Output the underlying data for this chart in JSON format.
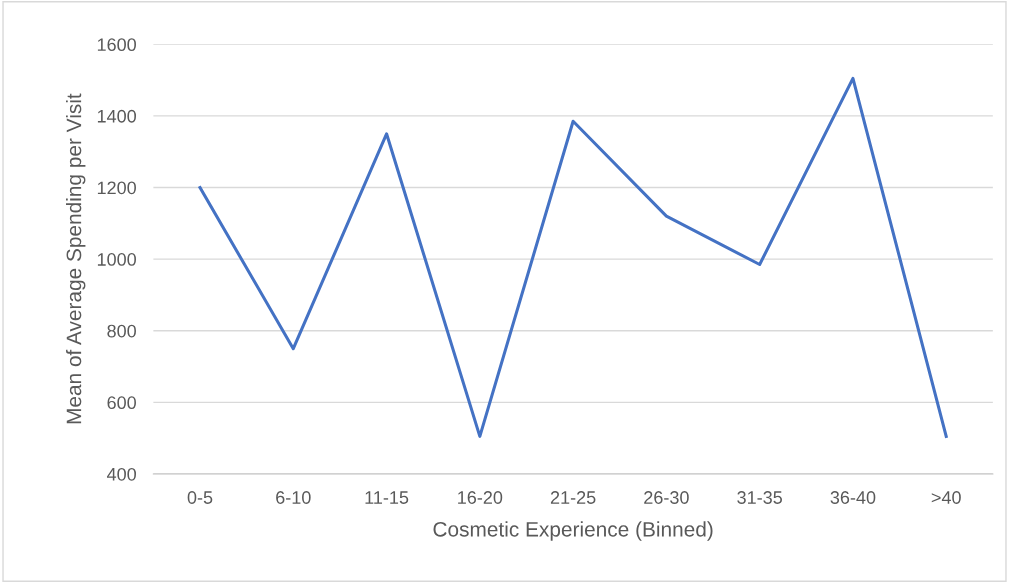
{
  "chart_data": {
    "type": "line",
    "xlabel": "Cosmetic Experience (Binned)",
    "ylabel": "Mean of Average Spending per Visit",
    "categories": [
      "0-5",
      "6-10",
      "11-15",
      "16-20",
      "21-25",
      "26-30",
      "31-35",
      "36-40",
      ">40"
    ],
    "series": [
      {
        "color": "#4472c4",
        "values": [
          1200,
          750,
          1350,
          505,
          1385,
          1120,
          985,
          1505,
          505
        ]
      }
    ],
    "ylim": [
      400,
      1600
    ],
    "yticks": [
      400,
      600,
      800,
      1000,
      1200,
      1400,
      1600
    ],
    "grid": "y",
    "marker": "none",
    "line_style": "solid"
  }
}
